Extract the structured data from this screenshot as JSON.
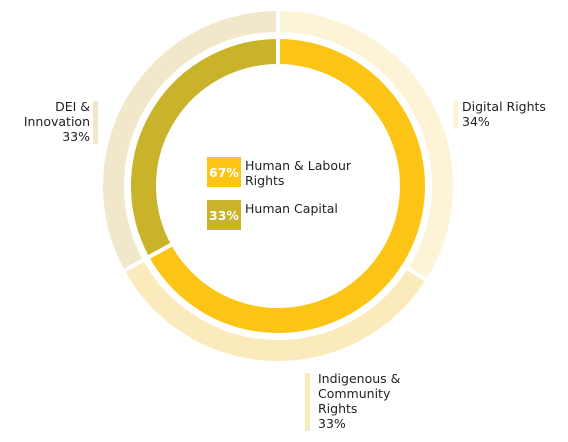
{
  "chart_data": {
    "type": "nested-donut",
    "rings": [
      {
        "categories": [
          "Human & Labour Rights",
          "Human Capital"
        ],
        "values": [
          67,
          33
        ],
        "value_labels": [
          "67%",
          "33%"
        ],
        "colors": [
          "#fcc515",
          "#c8b32a"
        ]
      },
      {
        "categories": [
          "Digital Rights",
          "Indigenous & Community Rights",
          "DEI & Innovation"
        ],
        "values": [
          34,
          33,
          33
        ],
        "value_labels": [
          "34%",
          "33%",
          "33%"
        ],
        "colors": [
          "#fdf4d8",
          "#fbeabb",
          "#f1e8cb"
        ]
      }
    ]
  }
}
